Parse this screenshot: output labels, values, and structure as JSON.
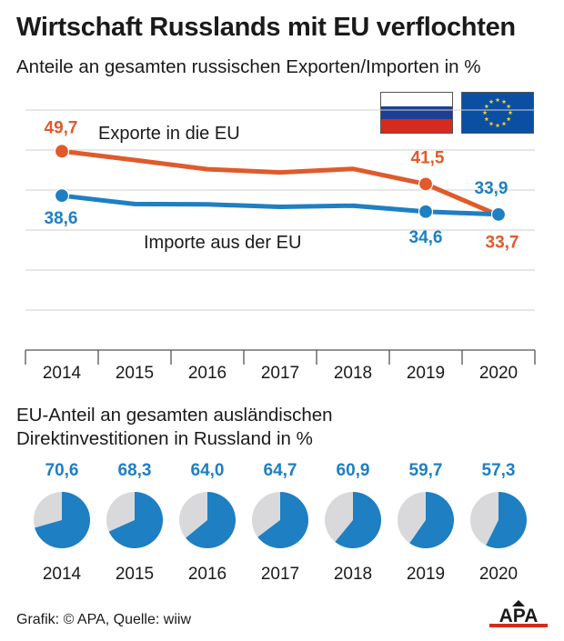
{
  "header": {
    "title": "Wirtschaft Russlands mit EU verflochten",
    "subtitle": "Anteile an gesamten russischen Exporten/Importen in %"
  },
  "colors": {
    "exports": "#e05a2b",
    "imports": "#1e7fc3",
    "grid": "#cfcfcf",
    "pie_rest": "#d9d9db",
    "axis": "#555555"
  },
  "flags": {
    "russia": {
      "colors": [
        "#ffffff",
        "#1c3f95",
        "#d52b1e"
      ]
    },
    "eu": {
      "background": "#0b4fa2",
      "stars": "#f4d21f"
    }
  },
  "chart_data": [
    {
      "type": "line",
      "title": "Anteile an gesamten russischen Exporten/Importen in %",
      "x": [
        "2014",
        "2015",
        "2016",
        "2017",
        "2018",
        "2019",
        "2020"
      ],
      "series": [
        {
          "name": "Exporte in die EU",
          "values": [
            49.7,
            47.5,
            45.2,
            44.4,
            45.3,
            41.5,
            33.7
          ],
          "labels": [
            {
              "index": 0,
              "text": "49,7"
            },
            {
              "index": 5,
              "text": "41,5"
            },
            {
              "index": 6,
              "text": "33,7"
            }
          ]
        },
        {
          "name": "Importe aus der EU",
          "values": [
            38.6,
            36.5,
            36.4,
            35.8,
            36.1,
            34.6,
            33.9
          ],
          "labels": [
            {
              "index": 0,
              "text": "38,6"
            },
            {
              "index": 5,
              "text": "34,6"
            },
            {
              "index": 6,
              "text": "33,9"
            }
          ]
        }
      ],
      "markers_at": [
        0,
        5,
        6
      ],
      "ylim": [
        0,
        60
      ],
      "grid": "horizontal"
    },
    {
      "type": "pie",
      "title": "EU-Anteil an gesamten ausländischen Direktinvestitionen in Russland in %",
      "categories": [
        "2014",
        "2015",
        "2016",
        "2017",
        "2018",
        "2019",
        "2020"
      ],
      "values": [
        70.6,
        68.3,
        64.0,
        64.7,
        60.9,
        59.7,
        57.3
      ],
      "labels": [
        "70,6",
        "68,3",
        "64,0",
        "64,7",
        "60,9",
        "59,7",
        "57,3"
      ]
    }
  ],
  "pies_title": {
    "line1": "EU-Anteil an gesamten ausländischen",
    "line2": "Direktinvestitionen in Russland in %"
  },
  "footer": {
    "source": "Grafik: © APA, Quelle: wiiw",
    "logo_text": "APA"
  }
}
